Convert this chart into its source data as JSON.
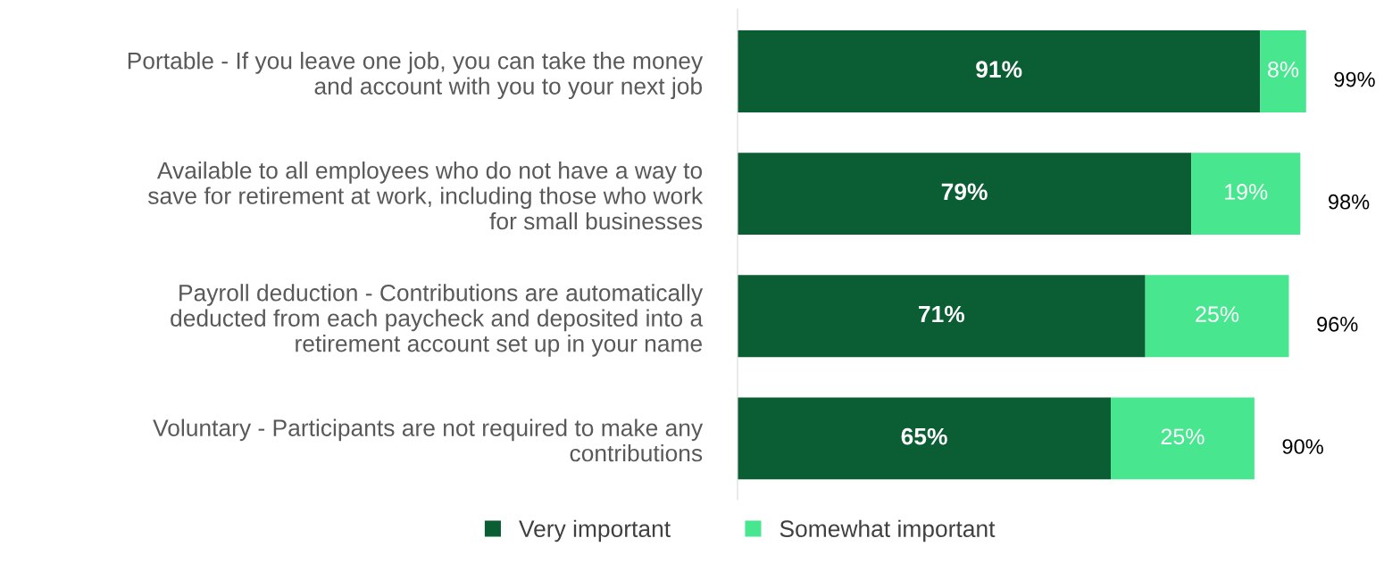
{
  "chart_data": {
    "type": "bar",
    "orientation": "horizontal",
    "stacked": true,
    "categories": [
      "Portable - If you leave one job, you can take the money\nand account with you to your next job",
      "Available to all employees who do not have a way to\nsave for retirement at work, including those who work\nfor small businesses",
      "Payroll deduction - Contributions are automatically\ndeducted from each paycheck and deposited into a\nretirement account set up in your name",
      "Voluntary - Participants are not required to make any\ncontributions"
    ],
    "series": [
      {
        "name": "Very important",
        "color": "#0b5e33",
        "values": [
          91,
          79,
          71,
          65
        ],
        "value_labels": [
          "91%",
          "79%",
          "71%",
          "65%"
        ]
      },
      {
        "name": "Somewhat important",
        "color": "#47e68f",
        "values": [
          8,
          19,
          25,
          25
        ],
        "value_labels": [
          "8%",
          "19%",
          "25%",
          "25%"
        ]
      }
    ],
    "totals": [
      "99%",
      "98%",
      "96%",
      "90%"
    ],
    "legend": "bottom",
    "grid": false
  }
}
